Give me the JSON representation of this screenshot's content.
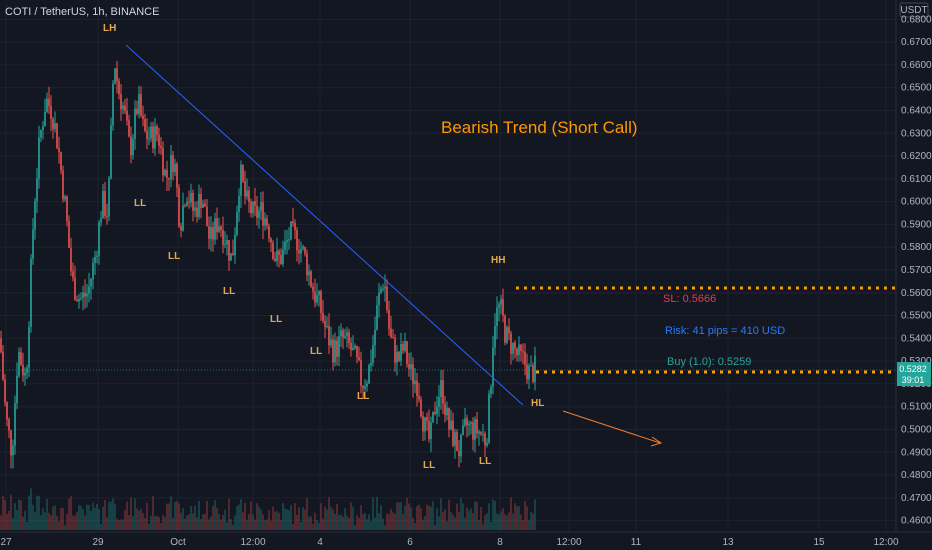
{
  "header": {
    "symbol_info": "COTI / TetherUS, 1h, BINANCE"
  },
  "price_axis": {
    "currency": "USDT",
    "ticks": [
      "0.6800",
      "0.6700",
      "0.6600",
      "0.6500",
      "0.6400",
      "0.6300",
      "0.6200",
      "0.6100",
      "0.6000",
      "0.5900",
      "0.5800",
      "0.5700",
      "0.5600",
      "0.5500",
      "0.5400",
      "0.5300",
      "0.5200",
      "0.5100",
      "0.5000",
      "0.4900",
      "0.4800",
      "0.4700",
      "0.4600"
    ],
    "last_price": "0.5282",
    "countdown": "39:01"
  },
  "time_axis": {
    "labels": [
      "27",
      "29",
      "Oct",
      "12:00",
      "4",
      "6",
      "8",
      "12:00",
      "11",
      "13",
      "15",
      "12:00"
    ]
  },
  "annotations": {
    "title": "Bearish Trend (Short Call)",
    "sl_label": "SL: 0.5666",
    "risk_label": "Risk: 41 pips = 410 USD",
    "buy_label": "Buy (1.0): 0.5259",
    "swing_labels": [
      "LH",
      "LL",
      "LL",
      "LL",
      "LL",
      "LL",
      "LL",
      "LL",
      "LL",
      "HH",
      "HL"
    ]
  },
  "colors": {
    "background": "#131722",
    "up_candle": "#26a69a",
    "down_candle": "#ef5350",
    "trendline": "#2962ff",
    "title": "#ff9800",
    "sl_text": "#f23645",
    "risk_text": "#2979ff",
    "buy_text": "#26a69a",
    "dotted_line": "#ff9800",
    "swing_label": "#e2a84e"
  },
  "chart_data": {
    "type": "candlestick",
    "symbol": "COTI / TetherUS",
    "interval": "1h",
    "exchange": "BINANCE",
    "ylim": [
      0.455,
      0.6885
    ],
    "swing_points": [
      {
        "label": "LH",
        "price": 0.68
      },
      {
        "label": "LL",
        "price": 0.608
      },
      {
        "label": "LL",
        "price": 0.586
      },
      {
        "label": "LL",
        "price": 0.566
      },
      {
        "label": "LL",
        "price": 0.554
      },
      {
        "label": "LL",
        "price": 0.536
      },
      {
        "label": "LL",
        "price": 0.518
      },
      {
        "label": "LL",
        "price": 0.484
      },
      {
        "label": "LL",
        "price": 0.486
      },
      {
        "label": "HH",
        "price": 0.572
      },
      {
        "label": "HL",
        "price": 0.518
      }
    ],
    "levels": {
      "stop_loss": 0.5666,
      "buy": 0.5259,
      "last": 0.5282
    },
    "risk": {
      "pips": 41,
      "usd": 410
    },
    "path_keypoints": [
      [
        0,
        0.54
      ],
      [
        6,
        0.505
      ],
      [
        12,
        0.49
      ],
      [
        18,
        0.535
      ],
      [
        26,
        0.522
      ],
      [
        34,
        0.598
      ],
      [
        40,
        0.628
      ],
      [
        46,
        0.645
      ],
      [
        52,
        0.64
      ],
      [
        58,
        0.625
      ],
      [
        66,
        0.595
      ],
      [
        72,
        0.565
      ],
      [
        80,
        0.557
      ],
      [
        88,
        0.56
      ],
      [
        96,
        0.578
      ],
      [
        102,
        0.6
      ],
      [
        108,
        0.595
      ],
      [
        112,
        0.64
      ],
      [
        114,
        0.664
      ],
      [
        118,
        0.65
      ],
      [
        124,
        0.64
      ],
      [
        130,
        0.622
      ],
      [
        138,
        0.644
      ],
      [
        144,
        0.63
      ],
      [
        150,
        0.628
      ],
      [
        158,
        0.63
      ],
      [
        166,
        0.61
      ],
      [
        174,
        0.62
      ],
      [
        180,
        0.59
      ],
      [
        186,
        0.606
      ],
      [
        194,
        0.595
      ],
      [
        202,
        0.603
      ],
      [
        210,
        0.582
      ],
      [
        218,
        0.592
      ],
      [
        224,
        0.586
      ],
      [
        232,
        0.574
      ],
      [
        240,
        0.613
      ],
      [
        246,
        0.6
      ],
      [
        254,
        0.594
      ],
      [
        262,
        0.596
      ],
      [
        268,
        0.59
      ],
      [
        276,
        0.574
      ],
      [
        282,
        0.576
      ],
      [
        290,
        0.586
      ],
      [
        298,
        0.583
      ],
      [
        306,
        0.574
      ],
      [
        314,
        0.56
      ],
      [
        320,
        0.554
      ],
      [
        326,
        0.543
      ],
      [
        334,
        0.534
      ],
      [
        342,
        0.54
      ],
      [
        350,
        0.536
      ],
      [
        356,
        0.53
      ],
      [
        362,
        0.52
      ],
      [
        368,
        0.524
      ],
      [
        374,
        0.54
      ],
      [
        378,
        0.556
      ],
      [
        384,
        0.567
      ],
      [
        390,
        0.54
      ],
      [
        398,
        0.53
      ],
      [
        404,
        0.536
      ],
      [
        410,
        0.525
      ],
      [
        418,
        0.52
      ],
      [
        424,
        0.502
      ],
      [
        430,
        0.494
      ],
      [
        436,
        0.513
      ],
      [
        442,
        0.519
      ],
      [
        448,
        0.502
      ],
      [
        454,
        0.496
      ],
      [
        460,
        0.49
      ],
      [
        466,
        0.502
      ],
      [
        472,
        0.5
      ],
      [
        480,
        0.499
      ],
      [
        486,
        0.495
      ],
      [
        490,
        0.515
      ],
      [
        494,
        0.548
      ],
      [
        500,
        0.554
      ],
      [
        506,
        0.541
      ],
      [
        512,
        0.537
      ],
      [
        518,
        0.532
      ],
      [
        524,
        0.53
      ],
      [
        530,
        0.524
      ],
      [
        536,
        0.527
      ]
    ]
  }
}
